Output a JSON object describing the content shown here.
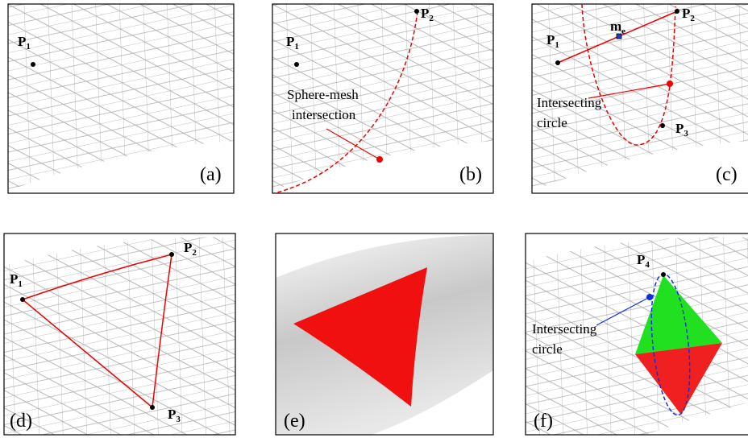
{
  "panels": [
    {
      "label": "(a)",
      "points": [
        {
          "base": "P",
          "sub": "1"
        }
      ]
    },
    {
      "label": "(b)",
      "points": [
        {
          "base": "P",
          "sub": "1"
        },
        {
          "base": "P",
          "sub": "2"
        }
      ],
      "annotation": [
        "Sphere-mesh",
        "intersection"
      ]
    },
    {
      "label": "(c)",
      "points": [
        {
          "base": "P",
          "sub": "1"
        },
        {
          "base": "P",
          "sub": "2"
        },
        {
          "base": "P",
          "sub": "3"
        },
        {
          "base": "m",
          "sub": "e"
        }
      ],
      "annotation": [
        "Intersecting",
        "circle"
      ]
    },
    {
      "label": "(d)",
      "points": [
        {
          "base": "P",
          "sub": "1"
        },
        {
          "base": "P",
          "sub": "2"
        },
        {
          "base": "P",
          "sub": "3"
        }
      ]
    },
    {
      "label": "(e)"
    },
    {
      "label": "(f)",
      "points": [
        {
          "base": "P",
          "sub": "4"
        }
      ],
      "annotation": [
        "Intersecting",
        "circle"
      ]
    }
  ]
}
